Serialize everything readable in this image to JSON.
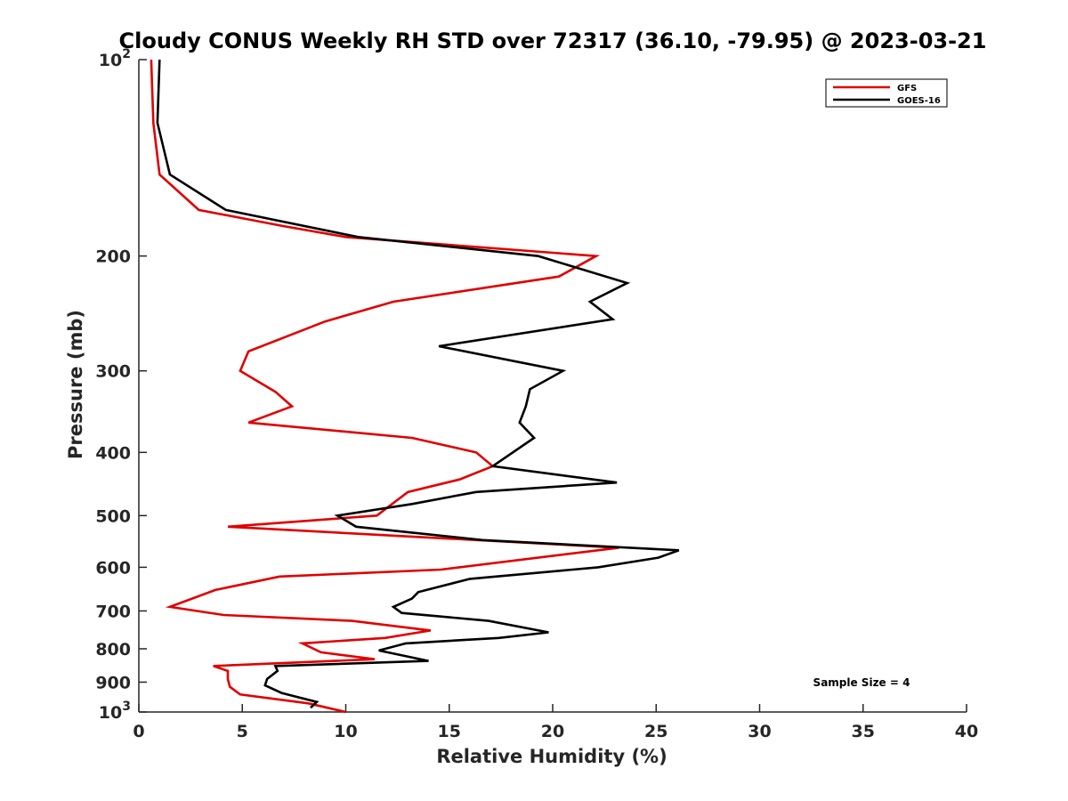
{
  "chart_data": {
    "type": "line",
    "title": "Cloudy CONUS Weekly RH STD over 72317 (36.10, -79.95) @ 2023-03-21",
    "xlabel": "Relative Humidity (%)",
    "ylabel": "Pressure (mb)",
    "xlim": [
      0,
      40
    ],
    "ylim": [
      100,
      1000
    ],
    "y_scale": "log",
    "y_reversed": true,
    "x_ticks": [
      0,
      5,
      10,
      15,
      20,
      25,
      30,
      35,
      40
    ],
    "y_ticks": [
      {
        "value": 100,
        "base": "10",
        "exp": "2"
      },
      {
        "value": 200,
        "label": "200"
      },
      {
        "value": 300,
        "label": "300"
      },
      {
        "value": 400,
        "label": "400"
      },
      {
        "value": 500,
        "label": "500"
      },
      {
        "value": 600,
        "label": "600"
      },
      {
        "value": 700,
        "label": "700"
      },
      {
        "value": 800,
        "label": "800"
      },
      {
        "value": 900,
        "label": "900"
      },
      {
        "value": 1000,
        "base": "10",
        "exp": "3"
      }
    ],
    "grid": false,
    "legend_position": "top-right",
    "annotation": "Sample Size = 4",
    "series": [
      {
        "name": "GFS",
        "color": "#e00000",
        "points": [
          [
            0.6,
            100
          ],
          [
            0.7,
            125
          ],
          [
            1.0,
            150
          ],
          [
            2.9,
            170
          ],
          [
            7.0,
            180
          ],
          [
            10.0,
            187
          ],
          [
            22.1,
            200
          ],
          [
            20.3,
            215
          ],
          [
            12.3,
            235
          ],
          [
            9.0,
            252
          ],
          [
            5.3,
            280
          ],
          [
            4.9,
            300
          ],
          [
            6.6,
            323
          ],
          [
            7.4,
            340
          ],
          [
            5.3,
            360
          ],
          [
            13.2,
            380
          ],
          [
            16.3,
            400
          ],
          [
            17.1,
            420
          ],
          [
            15.5,
            440
          ],
          [
            13.0,
            460
          ],
          [
            11.5,
            500
          ],
          [
            4.3,
            520
          ],
          [
            23.2,
            560
          ],
          [
            14.6,
            605
          ],
          [
            6.8,
            620
          ],
          [
            3.7,
            650
          ],
          [
            1.5,
            690
          ],
          [
            4.1,
            710
          ],
          [
            10.3,
            725
          ],
          [
            14.1,
            750
          ],
          [
            11.9,
            770
          ],
          [
            7.9,
            785
          ],
          [
            8.8,
            810
          ],
          [
            11.4,
            830
          ],
          [
            3.6,
            850
          ],
          [
            4.3,
            865
          ],
          [
            4.3,
            890
          ],
          [
            4.4,
            915
          ],
          [
            4.9,
            940
          ],
          [
            8.2,
            970
          ],
          [
            10.0,
            1000
          ]
        ]
      },
      {
        "name": "GOES-16",
        "color": "#000000",
        "points": [
          [
            1.0,
            100
          ],
          [
            0.9,
            125
          ],
          [
            1.5,
            150
          ],
          [
            4.2,
            170
          ],
          [
            10.6,
            187
          ],
          [
            19.3,
            200
          ],
          [
            23.6,
            220
          ],
          [
            21.8,
            235
          ],
          [
            22.9,
            250
          ],
          [
            14.5,
            275
          ],
          [
            20.5,
            300
          ],
          [
            18.9,
            320
          ],
          [
            18.7,
            340
          ],
          [
            18.4,
            360
          ],
          [
            19.1,
            380
          ],
          [
            17.1,
            420
          ],
          [
            23.1,
            445
          ],
          [
            16.3,
            460
          ],
          [
            13.2,
            480
          ],
          [
            9.6,
            500
          ],
          [
            10.5,
            520
          ],
          [
            16.6,
            545
          ],
          [
            26.1,
            565
          ],
          [
            25.1,
            580
          ],
          [
            22.2,
            600
          ],
          [
            16.0,
            625
          ],
          [
            13.5,
            655
          ],
          [
            13.2,
            670
          ],
          [
            12.3,
            690
          ],
          [
            12.7,
            705
          ],
          [
            16.9,
            725
          ],
          [
            19.8,
            755
          ],
          [
            17.4,
            770
          ],
          [
            12.9,
            785
          ],
          [
            11.6,
            805
          ],
          [
            14.0,
            835
          ],
          [
            6.6,
            850
          ],
          [
            6.7,
            865
          ],
          [
            6.2,
            890
          ],
          [
            6.1,
            910
          ],
          [
            6.9,
            935
          ],
          [
            8.6,
            965
          ],
          [
            8.3,
            985
          ]
        ]
      }
    ]
  }
}
